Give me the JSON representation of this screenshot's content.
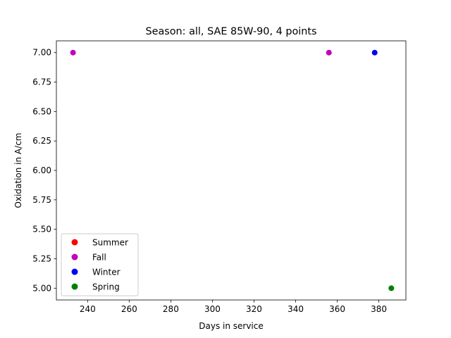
{
  "chart_data": {
    "type": "scatter",
    "title": "Season: all, SAE 85W-90, 4 points",
    "xlabel": "Days in service",
    "ylabel": "Oxidation in A/cm",
    "xlim": [
      225,
      393
    ],
    "ylim": [
      4.9,
      7.1
    ],
    "xticks": [
      240,
      260,
      280,
      300,
      320,
      340,
      360,
      380
    ],
    "yticks": [
      5.0,
      5.25,
      5.5,
      5.75,
      6.0,
      6.25,
      6.5,
      6.75,
      7.0
    ],
    "ytick_format": 2,
    "grid": false,
    "legend_position": "lower-left",
    "series": [
      {
        "name": "Summer",
        "color": "#ff0000",
        "points": []
      },
      {
        "name": "Fall",
        "color": "#bf00bf",
        "points": [
          [
            233,
            7.0
          ],
          [
            356,
            7.0
          ]
        ]
      },
      {
        "name": "Winter",
        "color": "#0000ff",
        "points": [
          [
            378,
            7.0
          ]
        ]
      },
      {
        "name": "Spring",
        "color": "#008000",
        "points": [
          [
            386,
            5.0
          ]
        ]
      }
    ]
  }
}
